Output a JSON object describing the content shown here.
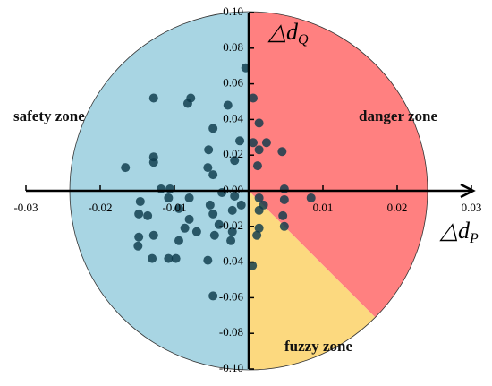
{
  "chart_data": {
    "type": "scatter",
    "x_label": "△d",
    "x_label_sub": "P",
    "y_label": "△d",
    "y_label_sub": "Q",
    "zones": [
      {
        "name": "safety zone",
        "color": "#a8d5e3"
      },
      {
        "name": "danger zone",
        "color": "#ff8080"
      },
      {
        "name": "fuzzy zone",
        "color": "#fcd97f"
      }
    ],
    "xlim": [
      -0.03,
      0.03
    ],
    "ylim": [
      -0.1,
      0.1
    ],
    "xticks": [
      -0.03,
      -0.02,
      -0.01,
      0.01,
      0.02,
      0.03
    ],
    "yticks": [
      {
        "value": -0.1,
        "label": "-0.10"
      },
      {
        "value": -0.08,
        "label": "-0.08"
      },
      {
        "value": -0.06,
        "label": "-0.06"
      },
      {
        "value": -0.04,
        "label": "-0.04"
      },
      {
        "value": -0.02,
        "label": "-0.02"
      },
      {
        "value": 0,
        "label": "0.00"
      },
      {
        "value": 0.02,
        "label": "0.02"
      },
      {
        "value": 0.04,
        "label": "0.04"
      },
      {
        "value": 0.06,
        "label": "0.06"
      },
      {
        "value": 0.08,
        "label": "0.08"
      },
      {
        "value": 0.1,
        "label": "0.10"
      }
    ],
    "series": [
      {
        "color": "#0d3b4c",
        "x": [
          -0.0004,
          -0.0128,
          -0.0078,
          -0.0082,
          -0.0028,
          -0.0048,
          -0.0012,
          -0.0054,
          -0.0128,
          -0.0128,
          -0.0019,
          -0.0166,
          -0.0055,
          -0.0048,
          -0.0118,
          -0.0106,
          -0.0108,
          -0.0146,
          -0.008,
          -0.0036,
          -0.0019,
          -0.0094,
          -0.0052,
          -0.0048,
          -0.001,
          -0.0022,
          -0.0148,
          -0.0136,
          -0.008,
          -0.004,
          -0.0148,
          -0.0086,
          -0.0022,
          -0.007,
          -0.0128,
          -0.0046,
          -0.0024,
          -0.0094,
          -0.0149,
          -0.013,
          -0.0108,
          -0.0098,
          -0.0055,
          -0.0048,
          0.0005,
          0.0006,
          0.0014,
          0.0006,
          0.0024,
          0.0014,
          0.0045,
          0.0012,
          0.0014,
          0.0048,
          0.0048,
          0.0084,
          0.002,
          0.0014,
          0.0046,
          0.0048,
          0.0014,
          0.0011
        ],
        "values": [
          0.069,
          0.052,
          0.052,
          0.049,
          0.048,
          0.035,
          0.028,
          0.023,
          0.019,
          0.016,
          0.017,
          0.013,
          0.013,
          0.009,
          0.001,
          0.001,
          -0.004,
          -0.006,
          -0.004,
          -0.001,
          -0.003,
          -0.01,
          -0.008,
          -0.013,
          -0.008,
          -0.011,
          -0.013,
          -0.014,
          -0.016,
          -0.019,
          -0.026,
          -0.021,
          -0.023,
          -0.023,
          -0.025,
          -0.025,
          -0.028,
          -0.028,
          -0.031,
          -0.038,
          -0.038,
          -0.038,
          -0.039,
          -0.059,
          -0.042,
          0.052,
          0.038,
          0.027,
          0.027,
          0.023,
          0.022,
          0.014,
          -0.004,
          0.001,
          -0.005,
          -0.004,
          -0.008,
          -0.011,
          -0.014,
          -0.02,
          -0.021,
          -0.025
        ]
      }
    ]
  }
}
